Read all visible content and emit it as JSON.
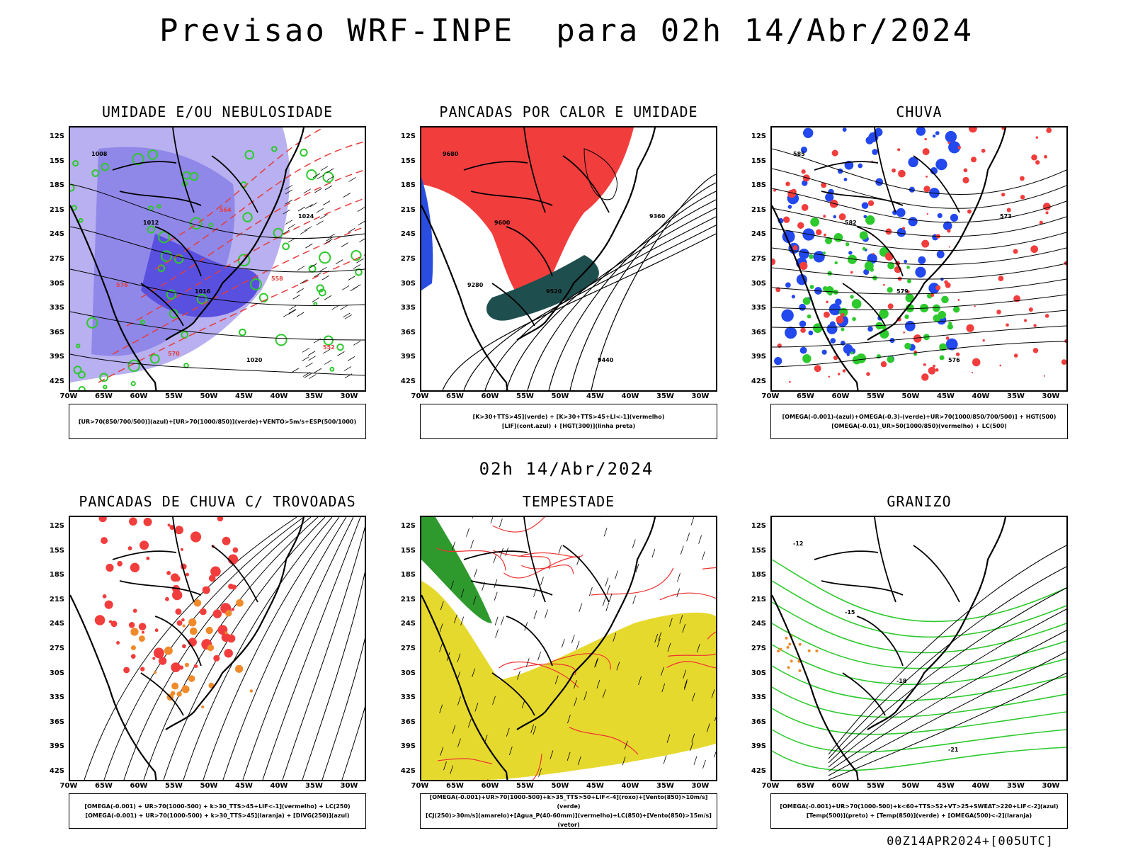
{
  "header": {
    "title": "Previsao WRF-INPE  para 02h 14/Abr/2024",
    "mid_stamp": "02h 14/Abr/2024",
    "footer_stamp": "00Z14APR2024+[005UTC]"
  },
  "axes": {
    "lat_ticks": [
      "12S",
      "15S",
      "18S",
      "21S",
      "24S",
      "27S",
      "30S",
      "33S",
      "36S",
      "39S",
      "42S"
    ],
    "lon_ticks": [
      "70W",
      "65W",
      "60W",
      "55W",
      "50W",
      "45W",
      "40W",
      "35W",
      "30W"
    ]
  },
  "panels": [
    {
      "id": "umidade",
      "title": "UMIDADE E/OU NEBULOSIDADE",
      "legend": [
        "[UR>70(850/700/500)](azul)+[UR>70(1000/850)](verde)+VENTO>5m/s+ESP(500/1000)"
      ],
      "contour_labels": [
        "1008",
        "1012",
        "1016",
        "1020",
        "1024",
        "576",
        "570",
        "564",
        "558",
        "552"
      ]
    },
    {
      "id": "pancadas-calor",
      "title": "PANCADAS POR CALOR E UMIDADE",
      "legend": [
        "[K>30+TTS>45](verde) + [K>30+TTS>45+LI<-1](vermelho)",
        "[LIF](cont.azul) + [HGT(300)](linha preta)"
      ],
      "contour_labels": [
        "9680",
        "9600",
        "9520",
        "9440",
        "9360",
        "9280"
      ]
    },
    {
      "id": "chuva",
      "title": "CHUVA",
      "legend": [
        "[OMEGA(-0.001)-(azul)+OMEGA(-0.3)-(verde)+UR>70(1000/850/700/500)] + HGT(500)",
        "[OMEGA(-0.01)_UR>50(1000/850)(vermelho) + LC(500)"
      ],
      "contour_labels": [
        "585",
        "582",
        "579",
        "576",
        "573"
      ]
    },
    {
      "id": "trovoadas",
      "title": "PANCADAS DE CHUVA C/ TROVOADAS",
      "legend": [
        "[OMEGA(-0.001) + UR>70(1000-500) + k>30_TTS>45+LIF<-1](vermelho) + LC(250)",
        "[OMEGA(-0.001) + UR>70(1000-500) + k>30_TTS>45](laranja) + [DIVG(250)](azul)"
      ],
      "contour_labels": []
    },
    {
      "id": "tempestade",
      "title": "TEMPESTADE",
      "legend": [
        "[OMEGA(-0.001)+UR>70(1000-500)+k>35_TTS>50+LIF<-4](roxo)+[Vento(850)>10m/s](verde)",
        "[CJ(250)>30m/s](amarelo)+[Agua_P(40-60mm)](vermelho)+LC(850)+[Vento(850)>15m/s](vetor)"
      ],
      "contour_labels": []
    },
    {
      "id": "granizo",
      "title": "GRANIZO",
      "legend": [
        "[OMEGA(-0.001)+UR>70(1000-500)+k<60+TTS>52+VT>25+SWEAT>220+LIF<-2](azul)",
        "[Temp(500)](preto) + [Temp(850)](verde) + [OMEGA(500)<-2](laranja)"
      ],
      "contour_labels": [
        "-12",
        "-15",
        "-18",
        "-21"
      ]
    }
  ]
}
